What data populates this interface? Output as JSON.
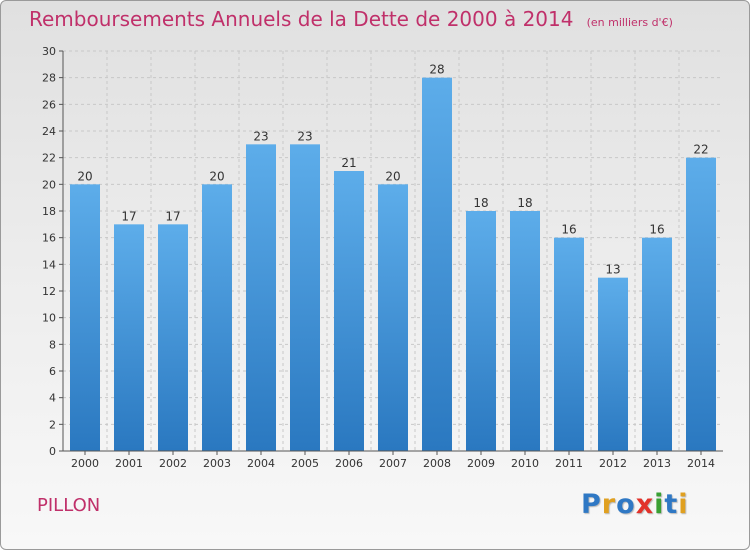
{
  "title": "Remboursements Annuels de la Dette de 2000 à 2014",
  "unit": "(en milliers d'€)",
  "commune": "PILLON",
  "logo": {
    "text": "Proxiti",
    "letters": [
      {
        "ch": "P",
        "color": "#2f78c4"
      },
      {
        "ch": "r",
        "color": "#e0a020"
      },
      {
        "ch": "o",
        "color": "#2f78c4"
      },
      {
        "ch": "x",
        "color": "#e2322a"
      },
      {
        "ch": "i",
        "color": "#3aa033"
      },
      {
        "ch": "t",
        "color": "#2f78c4"
      },
      {
        "ch": "i",
        "color": "#e0a020"
      }
    ]
  },
  "colors": {
    "title": "#c0306a",
    "bar_top": "#5dadea",
    "bar_bottom": "#2a78c0",
    "grid": "#c8c8c8",
    "axis": "#555555"
  },
  "chart_data": {
    "type": "bar",
    "categories": [
      "2000",
      "2001",
      "2002",
      "2003",
      "2004",
      "2005",
      "2006",
      "2007",
      "2008",
      "2009",
      "2010",
      "2011",
      "2012",
      "2013",
      "2014"
    ],
    "values": [
      20,
      17,
      17,
      20,
      23,
      23,
      21,
      20,
      28,
      18,
      18,
      16,
      13,
      16,
      22
    ],
    "yticks": [
      "0",
      "2",
      "4",
      "6",
      "8",
      "10",
      "12",
      "14",
      "16",
      "18",
      "20",
      "22",
      "24",
      "26",
      "28",
      "30"
    ],
    "ylim": [
      0,
      30
    ],
    "grid": true,
    "title": "Remboursements Annuels de la Dette de 2000 à 2014",
    "xlabel": "",
    "ylabel": ""
  }
}
